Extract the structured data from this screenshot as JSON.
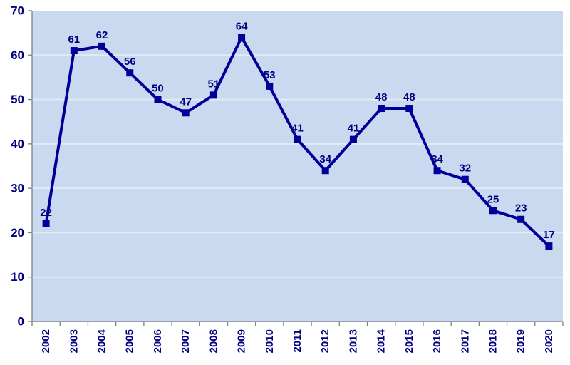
{
  "chart_data": {
    "type": "line",
    "title": "",
    "xlabel": "",
    "ylabel": "",
    "categories": [
      "2002",
      "2003",
      "2004",
      "2005",
      "2006",
      "2007",
      "2008",
      "2009",
      "2010",
      "2011",
      "2012",
      "2013",
      "2014",
      "2015",
      "2016",
      "2017",
      "2018",
      "2019",
      "2020"
    ],
    "series": [
      {
        "name": "values",
        "values": [
          22,
          61,
          62,
          56,
          50,
          47,
          51,
          64,
          53,
          41,
          34,
          41,
          48,
          48,
          34,
          32,
          25,
          23,
          17
        ]
      }
    ],
    "data_labels": [
      "22",
      "61",
      "62",
      "56",
      "50",
      "47",
      "51",
      "64",
      "53",
      "41",
      "34",
      "41",
      "48",
      "48",
      "34",
      "32",
      "25",
      "23",
      "17"
    ],
    "ylim": [
      0,
      70
    ],
    "yticks": [
      0,
      10,
      20,
      30,
      40,
      50,
      60,
      70
    ],
    "grid": true,
    "legend": false,
    "marker": "square",
    "x_tick_label_rotation": -90
  },
  "colors": {
    "page_bg": "#ffffff",
    "plot_bg": "#c9d9ef",
    "gridline": "#e2eaf6",
    "axis": "#808080",
    "line": "#000099",
    "marker": "#000099",
    "value_label": "#000080",
    "tick_label": "#000080"
  }
}
